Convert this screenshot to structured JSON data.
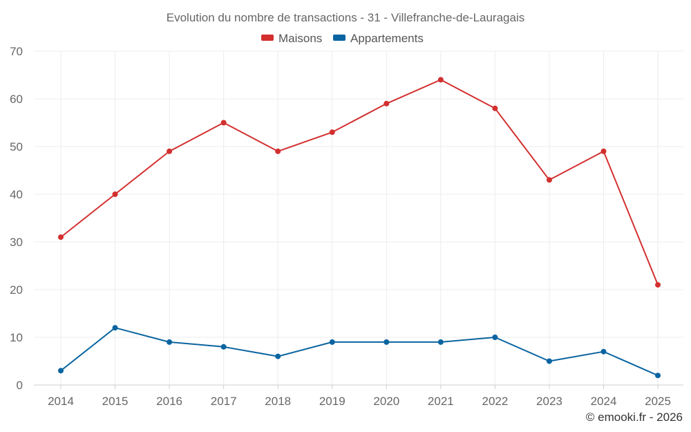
{
  "chart_data": {
    "type": "line",
    "title": "Evolution du nombre de transactions - 31 - Villefranche-de-Lauragais",
    "categories": [
      "2014",
      "2015",
      "2016",
      "2017",
      "2018",
      "2019",
      "2020",
      "2021",
      "2022",
      "2023",
      "2024",
      "2025"
    ],
    "series": [
      {
        "name": "Maisons",
        "color": "#d32f2f",
        "values": [
          31,
          40,
          49,
          55,
          49,
          53,
          59,
          64,
          58,
          43,
          49,
          21
        ]
      },
      {
        "name": "Appartements",
        "color": "#0a64a0",
        "values": [
          3,
          12,
          9,
          8,
          6,
          9,
          9,
          9,
          10,
          5,
          7,
          2
        ]
      }
    ],
    "ylim": [
      0,
      70
    ],
    "yticks": [
      0,
      10,
      20,
      30,
      40,
      50,
      60,
      70
    ],
    "xlabel": "",
    "ylabel": "",
    "legend": "top-center",
    "grid": true
  },
  "credit": "© emooki.fr - 2026"
}
